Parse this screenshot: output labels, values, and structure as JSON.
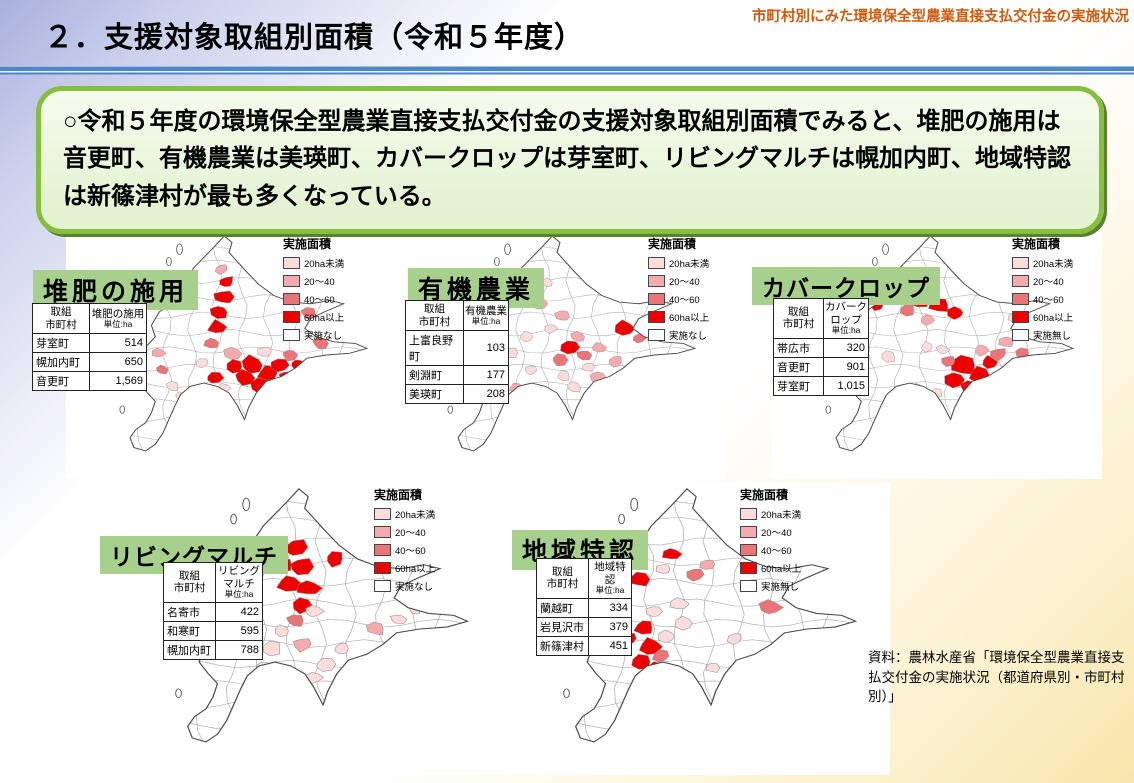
{
  "header": {
    "title": "２．支援対象取組別面積（令和５年度）",
    "corner_note": "市町村別にみた環境保全型農業直接支払交付金の実施状況"
  },
  "summary": {
    "text": "○令和５年度の環境保全型農業直接支払交付金の支援対象取組別面積でみると、堆肥の施用は音更町、有機農業は美瑛町、カバークロップは芽室町、リビングマルチは幌加内町、地域特認は新篠津村が最も多くなっている。"
  },
  "legend_colors": [
    "#fadcdc",
    "#f5abad",
    "#ea7478",
    "#ee0000",
    "#ffffff"
  ],
  "colors": {
    "label_background": "#a8d08d",
    "summary_border_green": "#86bf3e",
    "divider_blue": "#4f86c6",
    "corner_note_orange": "#cf5b0e"
  },
  "maps": [
    {
      "title": "堆肥の施用",
      "legend": {
        "title": "実施面積",
        "items": [
          "20ha未満",
          "20～40",
          "40～60",
          "60ha以上",
          "実施なし"
        ]
      },
      "table": {
        "header_col1": "取組\n市町村",
        "header_col2": "堆肥の施用",
        "unit": "単位:ha",
        "rows": [
          {
            "name": "芽室町",
            "value": "514"
          },
          {
            "name": "幌加内町",
            "value": "650"
          },
          {
            "name": "音更町",
            "value": "1,569"
          }
        ]
      }
    },
    {
      "title": "有機農業",
      "legend": {
        "title": "実施面積",
        "items": [
          "20ha未満",
          "20～40",
          "40～60",
          "60ha以上",
          "実施なし"
        ]
      },
      "table": {
        "header_col1": "取組\n市町村",
        "header_col2": "有機農業",
        "unit": "単位:ha",
        "rows": [
          {
            "name": "上富良野町",
            "value": "103"
          },
          {
            "name": "剣淵町",
            "value": "177"
          },
          {
            "name": "美瑛町",
            "value": "208"
          }
        ]
      }
    },
    {
      "title": "カバークロップ",
      "legend": {
        "title": "実施面積",
        "items": [
          "20ha未満",
          "20～40",
          "40～60",
          "60ha以上",
          "実施無し"
        ]
      },
      "table": {
        "header_col1": "取組\n市町村",
        "header_col2": "カバーク\nロップ",
        "unit": "単位:ha",
        "rows": [
          {
            "name": "帯広市",
            "value": "320"
          },
          {
            "name": "音更町",
            "value": "901"
          },
          {
            "name": "芽室町",
            "value": "1,015"
          }
        ]
      }
    },
    {
      "title": "リビングマルチ",
      "legend": {
        "title": "実施面積",
        "items": [
          "20ha未満",
          "20～40",
          "40～60",
          "60ha以上",
          "実施なし"
        ]
      },
      "table": {
        "header_col1": "取組\n市町村",
        "header_col2": "リビング\nマルチ",
        "unit": "単位:ha",
        "rows": [
          {
            "name": "名寄市",
            "value": "422"
          },
          {
            "name": "和寒町",
            "value": "595"
          },
          {
            "name": "幌加内町",
            "value": "788"
          }
        ]
      }
    },
    {
      "title": "地域特認",
      "legend": {
        "title": "実施面積",
        "items": [
          "20ha未満",
          "20～40",
          "40～60",
          "60ha以上",
          "実施無し"
        ]
      },
      "table": {
        "header_col1": "取組\n市町村",
        "header_col2": "地域特認",
        "unit": "単位:ha",
        "rows": [
          {
            "name": "蘭越町",
            "value": "334"
          },
          {
            "name": "岩見沢市",
            "value": "379"
          },
          {
            "name": "新篠津村",
            "value": "451"
          }
        ]
      }
    }
  ],
  "source": {
    "text": "資料：農林水産省「環境保全型農業直接支払交付金の実施状況（都道府県別・市町村別）」"
  },
  "chart_data": [
    {
      "type": "table",
      "title": "堆肥の施用",
      "ylabel": "実施面積(ha)",
      "categories": [
        "芽室町",
        "幌加内町",
        "音更町"
      ],
      "values": [
        514,
        650,
        1569
      ],
      "legend_bins": [
        "20ha未満",
        "20～40",
        "40～60",
        "60ha以上",
        "実施なし"
      ]
    },
    {
      "type": "table",
      "title": "有機農業",
      "ylabel": "実施面積(ha)",
      "categories": [
        "上富良野町",
        "剣淵町",
        "美瑛町"
      ],
      "values": [
        103,
        177,
        208
      ],
      "legend_bins": [
        "20ha未満",
        "20～40",
        "40～60",
        "60ha以上",
        "実施なし"
      ]
    },
    {
      "type": "table",
      "title": "カバークロップ",
      "ylabel": "実施面積(ha)",
      "categories": [
        "帯広市",
        "音更町",
        "芽室町"
      ],
      "values": [
        320,
        901,
        1015
      ],
      "legend_bins": [
        "20ha未満",
        "20～40",
        "40～60",
        "60ha以上",
        "実施無し"
      ]
    },
    {
      "type": "table",
      "title": "リビングマルチ",
      "ylabel": "実施面積(ha)",
      "categories": [
        "名寄市",
        "和寒町",
        "幌加内町"
      ],
      "values": [
        422,
        595,
        788
      ],
      "legend_bins": [
        "20ha未満",
        "20～40",
        "40～60",
        "60ha以上",
        "実施なし"
      ]
    },
    {
      "type": "table",
      "title": "地域特認",
      "ylabel": "実施面積(ha)",
      "categories": [
        "蘭越町",
        "岩見沢市",
        "新篠津村"
      ],
      "values": [
        334,
        379,
        451
      ],
      "legend_bins": [
        "20ha未満",
        "20～40",
        "40～60",
        "60ha以上",
        "実施無し"
      ]
    }
  ]
}
